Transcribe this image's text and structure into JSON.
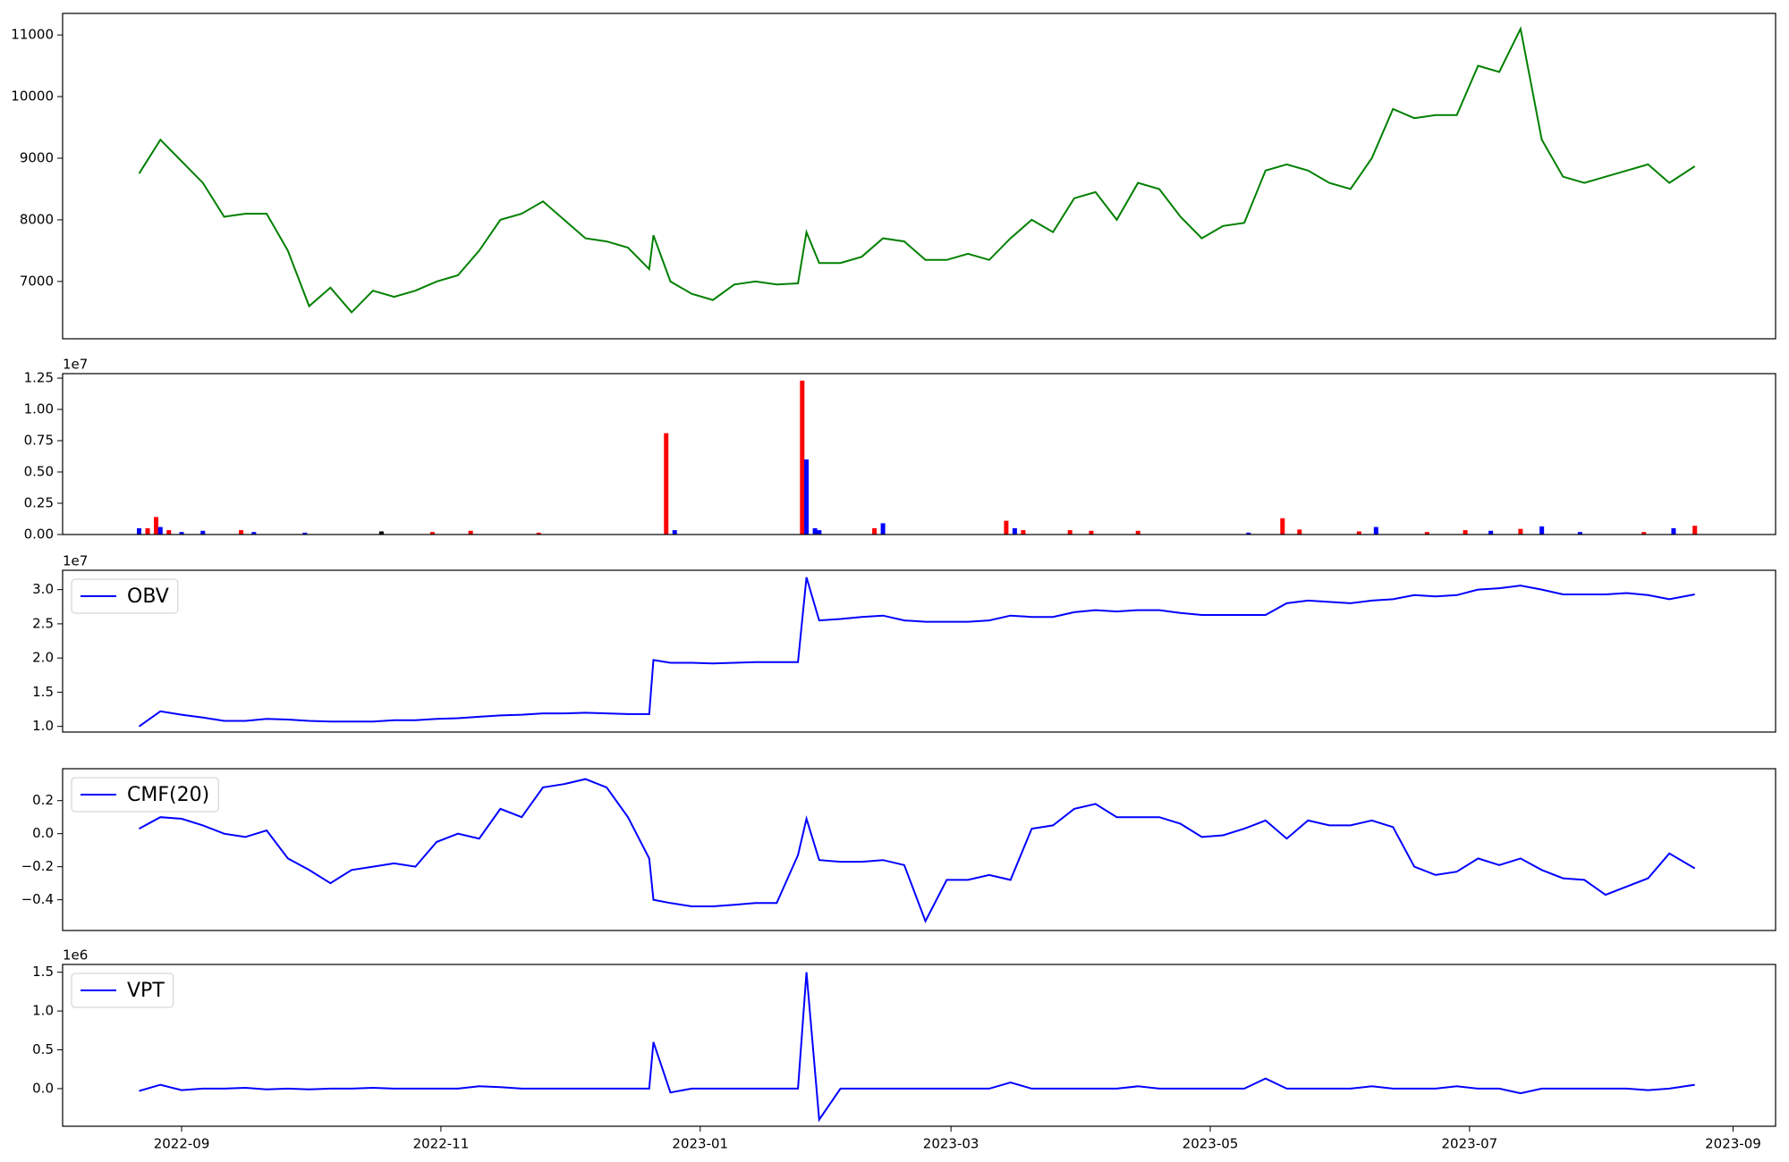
{
  "chart_data": [
    {
      "type": "line",
      "color": "#008000",
      "x": [
        21,
        26,
        31,
        36,
        41,
        46,
        51,
        56,
        61,
        66,
        71,
        76,
        81,
        86,
        91,
        96,
        101,
        106,
        111,
        116,
        121,
        126,
        131,
        136,
        141,
        142,
        146,
        151,
        156,
        161,
        166,
        171,
        176,
        178,
        181,
        186,
        191,
        196,
        201,
        206,
        211,
        216,
        221,
        226,
        231,
        236,
        241,
        246,
        251,
        256,
        261,
        266,
        271,
        276,
        281,
        286,
        291,
        296,
        301,
        306,
        311,
        316,
        321,
        326,
        331,
        336,
        341,
        346,
        351,
        356,
        361,
        366,
        371,
        376,
        381,
        387
      ],
      "values": [
        8750,
        9300,
        8950,
        8600,
        8050,
        8100,
        8100,
        7500,
        6600,
        6900,
        6500,
        6850,
        6750,
        6850,
        7000,
        7100,
        7500,
        8000,
        8100,
        8300,
        8000,
        7700,
        7650,
        7550,
        7200,
        7750,
        7000,
        6800,
        6700,
        6950,
        7000,
        6950,
        6970,
        7800,
        7300,
        7300,
        7400,
        7700,
        7650,
        7350,
        7350,
        7450,
        7350,
        7700,
        8000,
        7800,
        8350,
        8450,
        8000,
        8600,
        8500,
        8050,
        7700,
        7900,
        7950,
        8800,
        8900,
        8800,
        8600,
        8500,
        9000,
        9800,
        9650,
        9700,
        9700,
        10500,
        10400,
        11100,
        9300,
        8700,
        8600,
        8700,
        8800,
        8900,
        8600,
        8870
      ],
      "xlim": [
        3,
        406
      ],
      "ylim": [
        6070,
        11350
      ],
      "yticks": [
        7000,
        8000,
        9000,
        10000,
        11000
      ]
    },
    {
      "type": "bar",
      "offset_label": "1e7",
      "x": [
        21,
        23,
        25,
        26,
        28,
        31,
        36,
        45,
        48,
        60,
        78,
        90,
        99,
        115,
        145,
        147,
        177,
        178,
        180,
        181,
        194,
        196,
        225,
        227,
        229,
        240,
        245,
        256,
        282,
        290,
        294,
        308,
        312,
        324,
        333,
        339,
        346,
        351,
        360,
        375,
        382,
        387
      ],
      "values": [
        500000,
        500000,
        1400000,
        600000,
        350000,
        200000,
        300000,
        350000,
        200000,
        150000,
        250000,
        200000,
        300000,
        150000,
        8100000,
        350000,
        12300000,
        6000000,
        500000,
        350000,
        500000,
        900000,
        1100000,
        500000,
        350000,
        350000,
        300000,
        300000,
        150000,
        1300000,
        400000,
        250000,
        600000,
        200000,
        350000,
        300000,
        450000,
        650000,
        200000,
        200000,
        500000,
        700000
      ],
      "colors": [
        "#0000ff",
        "#ff0000",
        "#ff0000",
        "#0000ff",
        "#ff0000",
        "#0000ff",
        "#0000ff",
        "#ff0000",
        "#0000ff",
        "#0000ff",
        "#000000",
        "#ff0000",
        "#ff0000",
        "#ff0000",
        "#ff0000",
        "#0000ff",
        "#ff0000",
        "#0000ff",
        "#0000ff",
        "#0000ff",
        "#ff0000",
        "#0000ff",
        "#ff0000",
        "#0000ff",
        "#ff0000",
        "#ff0000",
        "#ff0000",
        "#ff0000",
        "#0000ff",
        "#ff0000",
        "#ff0000",
        "#ff0000",
        "#0000ff",
        "#ff0000",
        "#ff0000",
        "#0000ff",
        "#ff0000",
        "#0000ff",
        "#0000ff",
        "#ff0000",
        "#0000ff",
        "#ff0000"
      ],
      "xlim": [
        3,
        406
      ],
      "ylim": [
        0,
        12860000
      ],
      "yticks": [
        {
          "value": 0,
          "label": "0.00"
        },
        {
          "value": 2500000,
          "label": "0.25"
        },
        {
          "value": 5000000,
          "label": "0.50"
        },
        {
          "value": 7500000,
          "label": "0.75"
        },
        {
          "value": 10000000,
          "label": "1.00"
        },
        {
          "value": 12500000,
          "label": "1.25"
        }
      ]
    },
    {
      "type": "line",
      "offset_label": "1e7",
      "legend": "upper left",
      "x": [
        21,
        26,
        31,
        36,
        41,
        46,
        51,
        56,
        61,
        66,
        71,
        76,
        81,
        86,
        91,
        96,
        101,
        106,
        111,
        116,
        121,
        126,
        131,
        136,
        141,
        142,
        146,
        151,
        156,
        161,
        166,
        171,
        176,
        178,
        181,
        186,
        191,
        196,
        201,
        206,
        211,
        216,
        221,
        226,
        231,
        236,
        241,
        246,
        251,
        256,
        261,
        266,
        271,
        276,
        281,
        286,
        291,
        296,
        301,
        306,
        311,
        316,
        321,
        326,
        331,
        336,
        341,
        346,
        351,
        356,
        361,
        366,
        371,
        376,
        381,
        387
      ],
      "series": [
        {
          "name": "OBV",
          "color": "#0000ff",
          "values": [
            10000000,
            12200000,
            11700000,
            11300000,
            10800000,
            10800000,
            11100000,
            11000000,
            10800000,
            10700000,
            10700000,
            10700000,
            10900000,
            10900000,
            11100000,
            11200000,
            11400000,
            11600000,
            11700000,
            11900000,
            11900000,
            12000000,
            11900000,
            11800000,
            11800000,
            19700000,
            19300000,
            19300000,
            19200000,
            19300000,
            19400000,
            19400000,
            19400000,
            31800000,
            25500000,
            25700000,
            26000000,
            26200000,
            25500000,
            25300000,
            25300000,
            25300000,
            25500000,
            26200000,
            26000000,
            26000000,
            26700000,
            27000000,
            26800000,
            27000000,
            27000000,
            26600000,
            26300000,
            26300000,
            26300000,
            26300000,
            28000000,
            28400000,
            28200000,
            28000000,
            28400000,
            28600000,
            29200000,
            29000000,
            29200000,
            30000000,
            30200000,
            30600000,
            30000000,
            29300000,
            29300000,
            29300000,
            29500000,
            29200000,
            28600000,
            29300000
          ]
        }
      ],
      "xlim": [
        3,
        406
      ],
      "ylim": [
        9170000,
        32830000
      ],
      "yticks": [
        {
          "value": 10000000,
          "label": "1.0"
        },
        {
          "value": 15000000,
          "label": "1.5"
        },
        {
          "value": 20000000,
          "label": "2.0"
        },
        {
          "value": 25000000,
          "label": "2.5"
        },
        {
          "value": 30000000,
          "label": "3.0"
        }
      ]
    },
    {
      "type": "line",
      "legend": "upper left",
      "x": [
        21,
        26,
        31,
        36,
        41,
        46,
        51,
        56,
        61,
        66,
        71,
        76,
        81,
        86,
        91,
        96,
        101,
        106,
        111,
        116,
        121,
        126,
        131,
        136,
        141,
        142,
        146,
        151,
        156,
        161,
        166,
        171,
        176,
        178,
        181,
        186,
        191,
        196,
        201,
        206,
        211,
        216,
        221,
        226,
        231,
        236,
        241,
        246,
        251,
        256,
        261,
        266,
        271,
        276,
        281,
        286,
        291,
        296,
        301,
        306,
        311,
        316,
        321,
        326,
        331,
        336,
        341,
        346,
        351,
        356,
        361,
        366,
        371,
        376,
        381,
        387
      ],
      "series": [
        {
          "name": "CMF(20)",
          "color": "#0000ff",
          "values": [
            0.03,
            0.1,
            0.09,
            0.05,
            0.0,
            -0.02,
            0.02,
            -0.15,
            -0.22,
            -0.3,
            -0.22,
            -0.2,
            -0.18,
            -0.2,
            -0.05,
            0.0,
            -0.03,
            0.15,
            0.1,
            0.28,
            0.3,
            0.33,
            0.28,
            0.1,
            -0.15,
            -0.4,
            -0.42,
            -0.44,
            -0.44,
            -0.43,
            -0.42,
            -0.42,
            -0.13,
            0.09,
            -0.16,
            -0.17,
            -0.17,
            -0.16,
            -0.19,
            -0.53,
            -0.28,
            -0.28,
            -0.25,
            -0.28,
            0.03,
            0.05,
            0.15,
            0.18,
            0.1,
            0.1,
            0.1,
            0.06,
            -0.02,
            -0.01,
            0.03,
            0.08,
            -0.03,
            0.08,
            0.05,
            0.05,
            0.08,
            0.04,
            -0.2,
            -0.25,
            -0.23,
            -0.15,
            -0.19,
            -0.15,
            -0.22,
            -0.27,
            -0.28,
            -0.37,
            -0.32,
            -0.27,
            -0.12,
            -0.21
          ]
        }
      ],
      "xlim": [
        3,
        406
      ],
      "ylim": [
        -0.586,
        0.393
      ],
      "yticks": [
        {
          "value": -0.4,
          "label": "−0.4"
        },
        {
          "value": -0.2,
          "label": "−0.2"
        },
        {
          "value": 0,
          "label": "0.0"
        },
        0.2
      ]
    },
    {
      "type": "line",
      "offset_label": "1e6",
      "legend": "upper left",
      "x": [
        21,
        26,
        31,
        36,
        41,
        46,
        51,
        56,
        61,
        66,
        71,
        76,
        81,
        86,
        91,
        96,
        101,
        106,
        111,
        116,
        121,
        126,
        131,
        136,
        141,
        142,
        146,
        151,
        156,
        161,
        166,
        171,
        176,
        178,
        181,
        186,
        191,
        196,
        201,
        206,
        211,
        216,
        221,
        226,
        231,
        236,
        241,
        246,
        251,
        256,
        261,
        266,
        271,
        276,
        281,
        286,
        291,
        296,
        301,
        306,
        311,
        316,
        321,
        326,
        331,
        336,
        341,
        346,
        351,
        356,
        361,
        366,
        371,
        376,
        381,
        387
      ],
      "series": [
        {
          "name": "VPT",
          "color": "#0000ff",
          "values": [
            -30000,
            50000,
            -20000,
            0,
            0,
            10000,
            -10000,
            0,
            -10000,
            0,
            0,
            10000,
            0,
            0,
            0,
            0,
            30000,
            20000,
            0,
            0,
            0,
            0,
            0,
            0,
            0,
            600000,
            -50000,
            0,
            0,
            0,
            0,
            0,
            0,
            1500000,
            -400000,
            0,
            0,
            0,
            0,
            0,
            0,
            0,
            0,
            80000,
            0,
            0,
            0,
            0,
            0,
            30000,
            0,
            0,
            0,
            0,
            0,
            130000,
            0,
            0,
            0,
            0,
            30000,
            0,
            0,
            0,
            30000,
            0,
            0,
            -60000,
            0,
            0,
            0,
            0,
            0,
            -20000,
            0,
            50000
          ]
        }
      ],
      "xlim": [
        3,
        406
      ],
      "ylim": [
        -485000,
        1600000
      ],
      "yticks": [
        {
          "value": 0,
          "label": "0.0"
        },
        {
          "value": 500000,
          "label": "0.5"
        },
        {
          "value": 1000000,
          "label": "1.0"
        },
        {
          "value": 1500000,
          "label": "1.5"
        }
      ],
      "xticks": [
        {
          "value": 31,
          "label": "2022-09"
        },
        {
          "value": 92,
          "label": "2022-11"
        },
        {
          "value": 153,
          "label": "2023-01"
        },
        {
          "value": 212,
          "label": "2023-03"
        },
        {
          "value": 273,
          "label": "2023-05"
        },
        {
          "value": 334,
          "label": "2023-07"
        },
        {
          "value": 396,
          "label": "2023-09"
        }
      ]
    }
  ]
}
